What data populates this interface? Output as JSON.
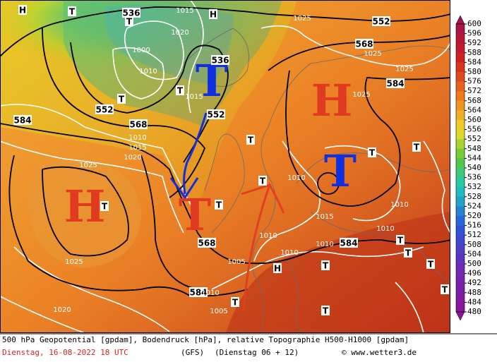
{
  "map": {
    "pressure_centers": [
      "H",
      "H",
      "T",
      "T",
      "T"
    ],
    "small_symbols": [
      "H",
      "T",
      "H",
      "T",
      "T",
      "T",
      "T",
      "T",
      "H",
      "T",
      "T",
      "T",
      "T",
      "T",
      "T",
      "T",
      "T",
      "T",
      "T",
      "T"
    ],
    "contour_labels": [
      "536",
      "552",
      "568",
      "584",
      "552",
      "568",
      "584",
      "552",
      "536",
      "568",
      "584",
      "584",
      "1015",
      "1025",
      "1025",
      "1025",
      "1025",
      "1020",
      "1000",
      "1010",
      "1015",
      "1010",
      "1015",
      "1020",
      "1025",
      "1025",
      "1020",
      "1005",
      "1010",
      "1010",
      "1010",
      "1015",
      "1010",
      "1010",
      "1010",
      "1005",
      "1010"
    ]
  },
  "colorbar": {
    "ticks": [
      600,
      596,
      592,
      588,
      584,
      580,
      576,
      572,
      568,
      564,
      560,
      556,
      552,
      548,
      544,
      540,
      536,
      532,
      528,
      524,
      520,
      516,
      512,
      508,
      504,
      500,
      496,
      492,
      488,
      484,
      480
    ]
  },
  "footer": {
    "description": "500 hPa Geopotential [gpdam], Bodendruck [hPa], relative Topographie H500-H1000 [gpdam]",
    "date": "Dienstag, 16-08-2022  18 UTC",
    "model": "(GFS)",
    "run": "(Dienstag 06 + 12)",
    "copyright": "© www.wetter3.de"
  }
}
